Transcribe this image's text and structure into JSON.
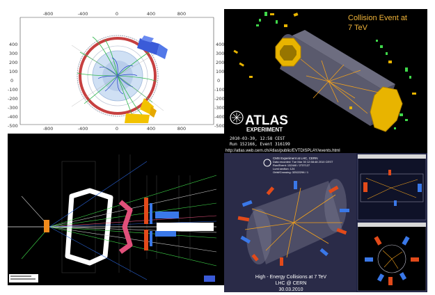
{
  "atlas_display": {
    "x_ticks_top": [
      "-800",
      "-400",
      "0",
      "400",
      "800"
    ],
    "x_ticks_bottom": [
      "-800",
      "-400",
      "0",
      "400",
      "800"
    ],
    "y_ticks_left": [
      "400",
      "300",
      "200",
      "100",
      "0",
      "-100",
      "-200",
      "-300",
      "-400",
      "-500"
    ],
    "y_ticks_right": [
      "400",
      "300",
      "200",
      "100",
      "0",
      "-100",
      "-200",
      "-300",
      "-400",
      "-500"
    ]
  },
  "atlas_event": {
    "title_line1": "Collision Event at",
    "title_line2": "7 TeV",
    "logo_word": "ATLAS",
    "logo_sub": "EXPERIMENT",
    "run_info_line1": "2010-03-30, 12:58 CEST",
    "run_info_line2": "Run 152166, Event 316199",
    "url": "http://atlas.web.cern.ch/Atlas/public/EVTDISPLAY/events.html"
  },
  "cms_event": {
    "caption_line1": "High - Energy Collisions at 7 TeV",
    "caption_line2": "LHC @ CERN",
    "caption_line3": "30.03.2010",
    "info_line1": "CMS Experiment at LHC, CERN",
    "info_line2": "Data recorded: Tue Mar 30 12:58:48 2010 CEST",
    "info_line3": "Run/Event: 132440 / 2737127",
    "info_line4": "Lumi section: 124",
    "info_line5": "Orbit/Crossing: 32522296 / 1"
  },
  "colors": {
    "atlas_gold": "#e8b400",
    "atlas_title": "#f2b53a",
    "track_orange": "#f3a21c",
    "calo_red": "#e24a1a",
    "calo_blue": "#3a78e8",
    "muon_green": "#3fd84a",
    "lhcb_magenta": "#e0507a"
  }
}
